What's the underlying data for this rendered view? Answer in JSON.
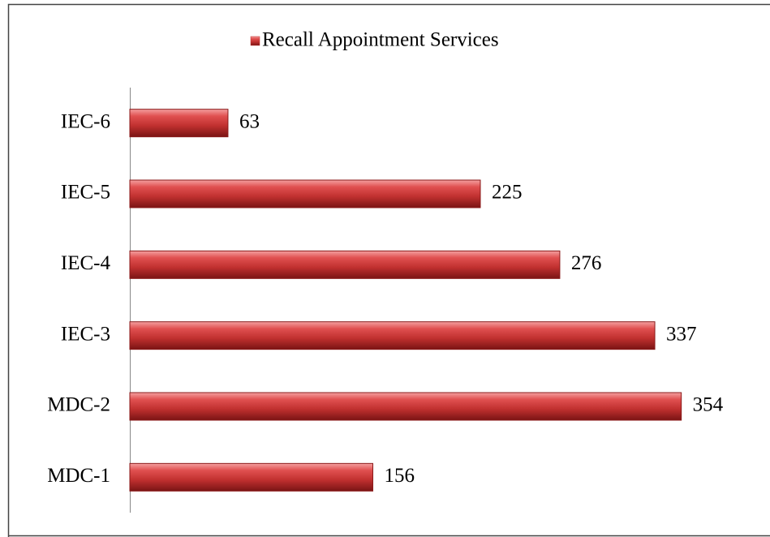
{
  "chart_data": {
    "type": "bar",
    "orientation": "horizontal",
    "categories": [
      "MDC-1",
      "MDC-2",
      "IEC-3",
      "IEC-4",
      "IEC-5",
      "IEC-6"
    ],
    "series": [
      {
        "name": "Recall Appointment Services",
        "color": "#c0302f",
        "values": [
          156,
          354,
          337,
          276,
          225,
          63
        ]
      }
    ],
    "xlim": [
      0,
      400
    ],
    "legend": "top"
  }
}
